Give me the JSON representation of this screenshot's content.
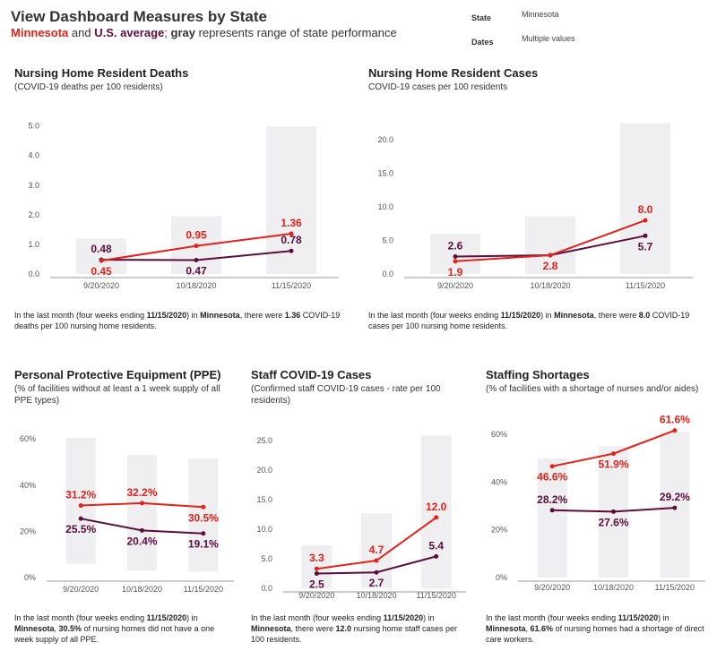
{
  "header": {
    "title": "View Dashboard Measures by State",
    "subtitle_state": "Minnesota",
    "subtitle_and": " and ",
    "subtitle_us": "U.S. average",
    "subtitle_semicolon": "; ",
    "subtitle_gray": "gray",
    "subtitle_rest": " represents range of state performance"
  },
  "filters": {
    "state_label": "State",
    "state_value": "Minnesota",
    "dates_label": "Dates",
    "dates_value": "Multiple values"
  },
  "colors": {
    "minnesota": "#e2231a",
    "us_average": "#5b0e3c",
    "range": "#efeff1",
    "axis": "#999999"
  },
  "chart_data": [
    {
      "id": "deaths",
      "type": "line",
      "title": "Nursing Home Resident Deaths",
      "subtitle_lines": [
        "(COVID-19 deaths per 100 residents)"
      ],
      "categories": [
        "9/20/2020",
        "10/18/2020",
        "11/15/2020"
      ],
      "ylim": [
        0,
        5.2
      ],
      "yticks": [
        0,
        1,
        2,
        3,
        4,
        5
      ],
      "tick_decimals": 1,
      "tick_suffix": "",
      "series": [
        {
          "name": "Minnesota",
          "values": [
            0.45,
            0.95,
            1.36
          ],
          "labels": [
            "0.45",
            "0.95",
            "1.36"
          ],
          "label_pos": [
            "below",
            "above",
            "above"
          ]
        },
        {
          "name": "U.S. average",
          "values": [
            0.48,
            0.47,
            0.78
          ],
          "labels": [
            "0.48",
            "0.47",
            "0.78"
          ],
          "label_pos": [
            "above",
            "below",
            "above"
          ]
        }
      ],
      "range": [
        {
          "low": 0,
          "high": 1.2
        },
        {
          "low": 0,
          "high": 1.95
        },
        {
          "low": 0,
          "high": 4.98
        }
      ],
      "summary": {
        "t1": "In the last month (four weeks ending ",
        "date": "11/15/2020",
        "t2": ") in ",
        "state": "Minnesota",
        "t3": ", there were ",
        "value": "1.36",
        "t4": " COVID-19 deaths per 100 nursing home residents."
      }
    },
    {
      "id": "cases",
      "type": "line",
      "title": "Nursing Home Resident Cases",
      "subtitle_lines": [
        "COVID-19 cases per 100 residents"
      ],
      "categories": [
        "9/20/2020",
        "10/18/2020",
        "11/15/2020"
      ],
      "ylim": [
        0,
        23.5
      ],
      "yticks": [
        0,
        5,
        10,
        15,
        20
      ],
      "tick_decimals": 1,
      "tick_suffix": "",
      "series": [
        {
          "name": "Minnesota",
          "values": [
            1.9,
            2.8,
            8.0
          ],
          "labels": [
            "1.9",
            "2.8",
            "8.0"
          ],
          "label_pos": [
            "below",
            "below",
            "above"
          ]
        },
        {
          "name": "U.S. average",
          "values": [
            2.6,
            2.8,
            5.7
          ],
          "labels": [
            "2.6",
            "",
            "5.7"
          ],
          "label_pos": [
            "above",
            "below",
            "below"
          ]
        }
      ],
      "range": [
        {
          "low": 0,
          "high": 6.0
        },
        {
          "low": 0,
          "high": 8.6
        },
        {
          "low": 0,
          "high": 22.5
        }
      ],
      "summary": {
        "t1": "In the last month (four weeks ending ",
        "date": "11/15/2020",
        "t2": ") in ",
        "state": "Minnesota",
        "t3": ", there were ",
        "value": "8.0",
        "t4": " COVID-19 cases per 100 nursing home residents."
      }
    },
    {
      "id": "ppe",
      "type": "line",
      "title": "Personal Protective Equipment (PPE)",
      "subtitle_lines": [
        "(% of facilities without at least a 1 week supply of all",
        "PPE types)"
      ],
      "categories": [
        "9/20/2020",
        "10/18/2020",
        "11/15/2020"
      ],
      "ylim": [
        0,
        62
      ],
      "yticks": [
        0,
        20,
        40,
        60
      ],
      "tick_decimals": 0,
      "tick_suffix": "%",
      "series": [
        {
          "name": "Minnesota",
          "values": [
            31.2,
            32.2,
            30.5
          ],
          "labels": [
            "31.2%",
            "32.2%",
            "30.5%"
          ],
          "label_pos": [
            "above",
            "above",
            "below"
          ]
        },
        {
          "name": "U.S. average",
          "values": [
            25.5,
            20.4,
            19.1
          ],
          "labels": [
            "25.5%",
            "20.4%",
            "19.1%"
          ],
          "label_pos": [
            "below",
            "below",
            "below"
          ]
        }
      ],
      "range": [
        {
          "low": 6,
          "high": 60.5
        },
        {
          "low": 3,
          "high": 53
        },
        {
          "low": 2.5,
          "high": 51.5
        }
      ],
      "summary": {
        "t1": "In the last month (four weeks ending ",
        "date": "11/15/2020",
        "t2": ") in ",
        "state": "Minnesota",
        "t3": ", ",
        "value": "30.5%",
        "t4": " of nursing homes did not have a one week supply of all PPE."
      }
    },
    {
      "id": "staff",
      "type": "line",
      "title": "Staff COVID-19 Cases",
      "subtitle_lines": [
        "(Confirmed staff COVID-19 cases - rate per 100",
        "residents)"
      ],
      "categories": [
        "9/20/2020",
        "10/18/2020",
        "11/15/2020"
      ],
      "ylim": [
        0,
        27
      ],
      "yticks": [
        0,
        5,
        10,
        15,
        20,
        25
      ],
      "tick_decimals": 1,
      "tick_suffix": "",
      "series": [
        {
          "name": "Minnesota",
          "values": [
            3.3,
            4.7,
            12.0
          ],
          "labels": [
            "3.3",
            "4.7",
            "12.0"
          ],
          "label_pos": [
            "above",
            "above",
            "above"
          ]
        },
        {
          "name": "U.S. average",
          "values": [
            2.5,
            2.7,
            5.4
          ],
          "labels": [
            "2.5",
            "2.7",
            "5.4"
          ],
          "label_pos": [
            "below",
            "below",
            "above"
          ]
        }
      ],
      "range": [
        {
          "low": 0,
          "high": 7.3
        },
        {
          "low": 0,
          "high": 12.7
        },
        {
          "low": 0,
          "high": 25.9
        }
      ],
      "summary": {
        "t1": "In the last month (four weeks ending ",
        "date": "11/15/2020",
        "t2": ") in ",
        "state": "Minnesota",
        "t3": ", there were ",
        "value": "12.0",
        "t4": " nursing home staff cases per 100 residents."
      }
    },
    {
      "id": "shortage",
      "type": "line",
      "title": "Staffing Shortages",
      "subtitle_lines": [
        "(% of facilities with a shortage of nurses and/or aides)"
      ],
      "categories": [
        "9/20/2020",
        "10/18/2020",
        "11/15/2020"
      ],
      "ylim": [
        0,
        63
      ],
      "yticks": [
        0,
        20,
        40,
        60
      ],
      "tick_decimals": 0,
      "tick_suffix": "%",
      "series": [
        {
          "name": "Minnesota",
          "values": [
            46.6,
            51.9,
            61.6
          ],
          "labels": [
            "46.6%",
            "51.9%",
            "61.6%"
          ],
          "label_pos": [
            "below",
            "below",
            "above"
          ]
        },
        {
          "name": "U.S. average",
          "values": [
            28.2,
            27.6,
            29.2
          ],
          "labels": [
            "28.2%",
            "27.6%",
            "29.2%"
          ],
          "label_pos": [
            "above",
            "below",
            "above"
          ]
        }
      ],
      "range": [
        {
          "low": 0,
          "high": 50
        },
        {
          "low": 0,
          "high": 55
        },
        {
          "low": 0,
          "high": 61
        }
      ],
      "summary": {
        "t1": "In the last month (four weeks ending ",
        "date": "11/15/2020",
        "t2": ") in ",
        "state": "Minnesota",
        "t3": ", ",
        "value": "61.6%",
        "t4": " of nursing homes had a shortage of direct care workers."
      }
    }
  ]
}
